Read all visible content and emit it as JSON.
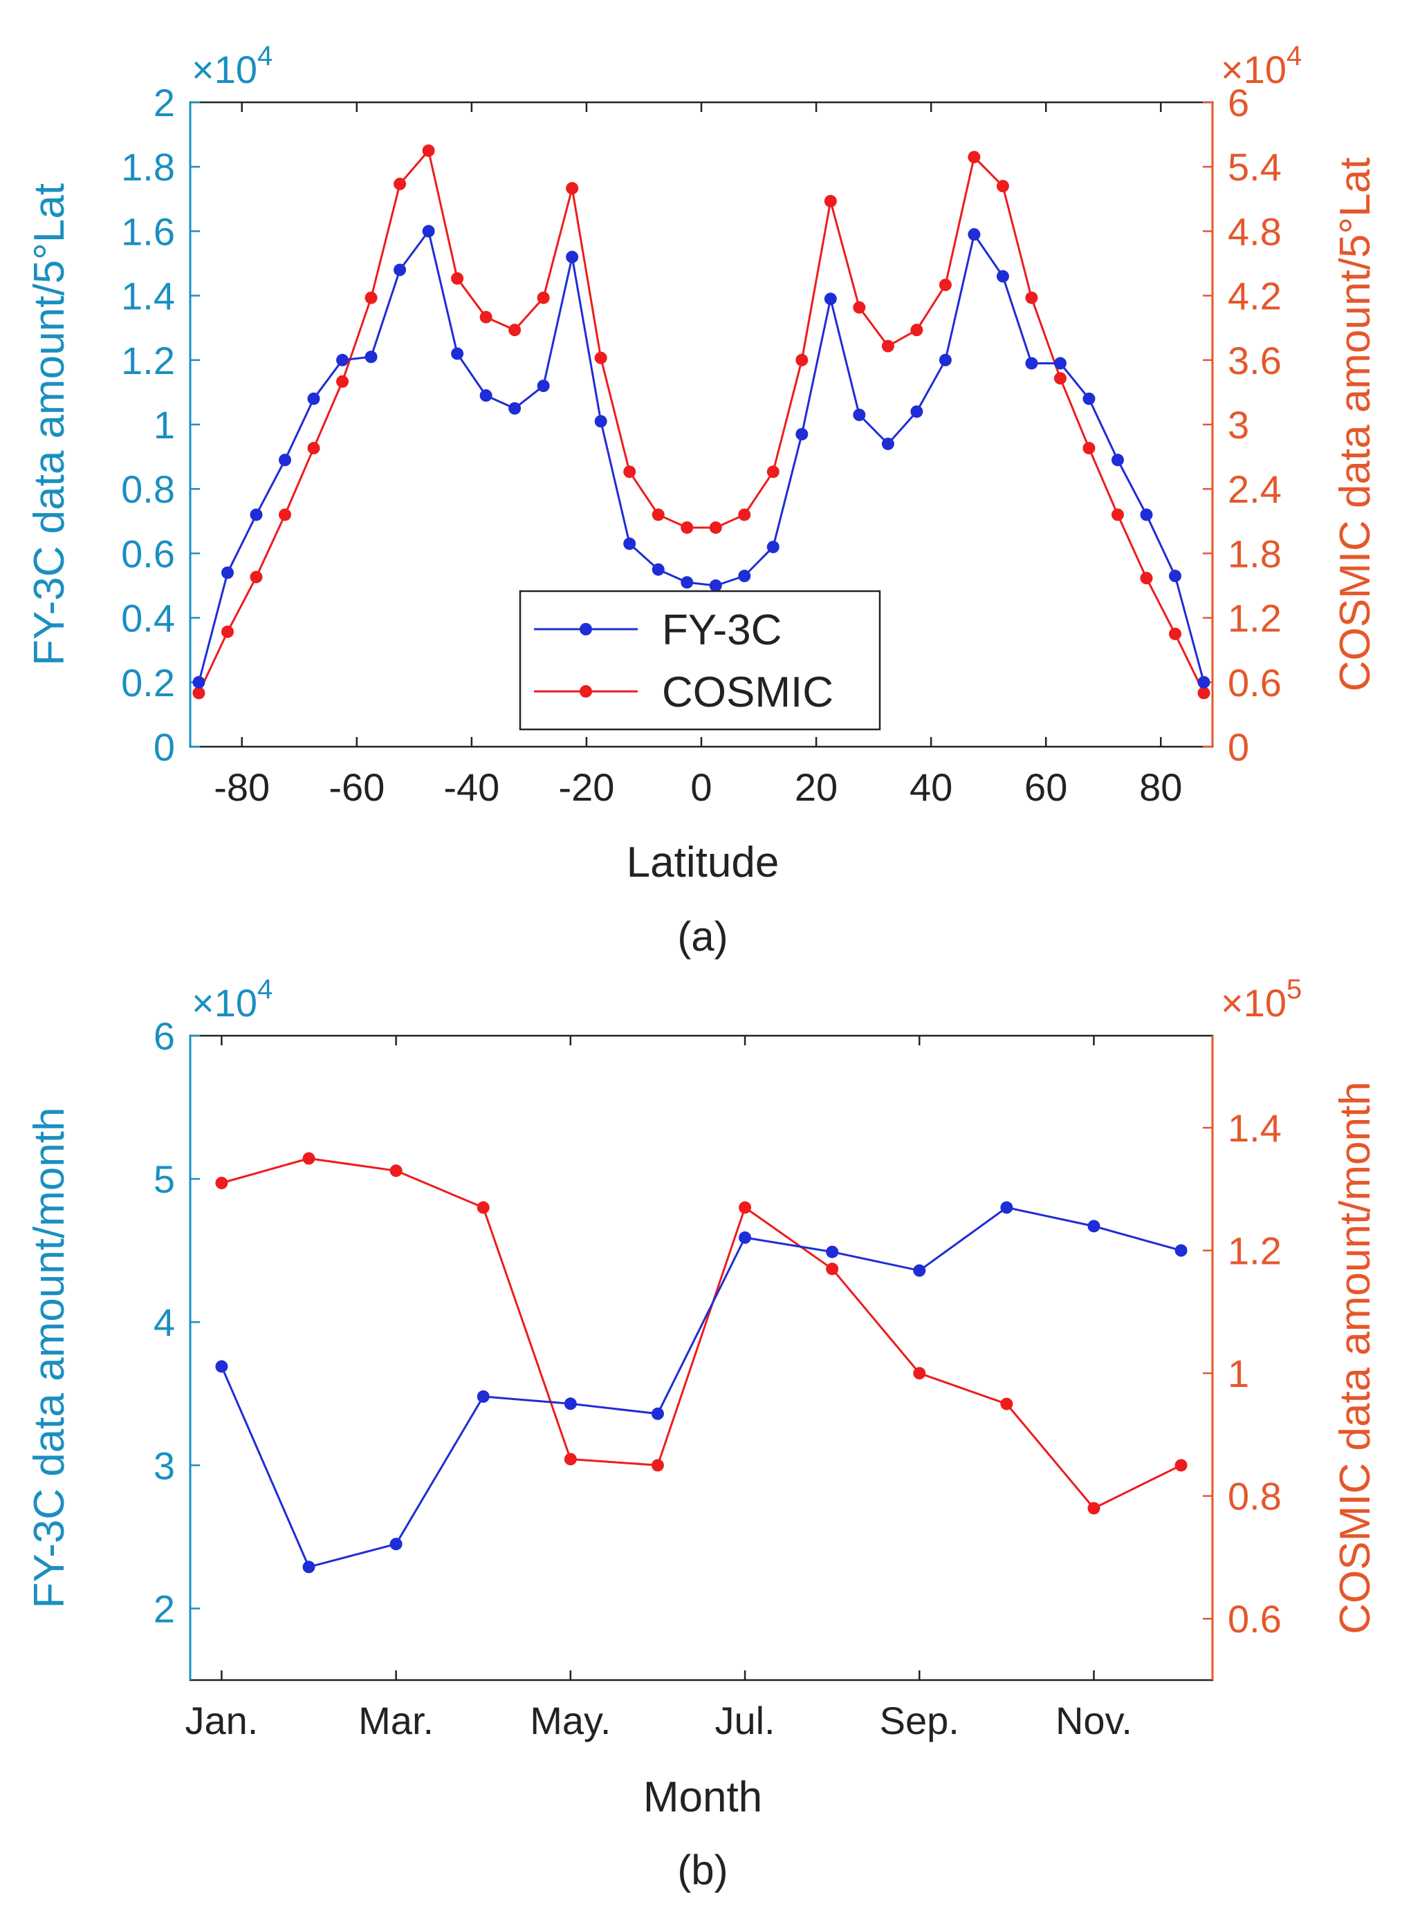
{
  "colors": {
    "left_axis": "#1a8fc0",
    "right_axis": "#e5572a",
    "fy3c": "#1f2dd6",
    "cosmic": "#ee1c1c",
    "frame": "#222222"
  },
  "legend": [
    "FY-3C",
    "COSMIC"
  ],
  "chart_data": [
    {
      "type": "line",
      "caption": "(a)",
      "xlabel": "Latitude",
      "ylabel_left": "FY-3C data amount/5°Lat",
      "ylabel_right": "COSMIC data amount/5°Lat",
      "left_multiplier": {
        "base": "×10",
        "exp": "4"
      },
      "right_multiplier": {
        "base": "×10",
        "exp": "4"
      },
      "xlim": [
        -89,
        89
      ],
      "ylim_left": [
        0,
        2
      ],
      "ylim_right": [
        0,
        6
      ],
      "x_ticks": [
        -80,
        -60,
        -40,
        -20,
        0,
        20,
        40,
        60,
        80
      ],
      "x_tick_labels": [
        "-80",
        "-60",
        "-40",
        "-20",
        "0",
        "20",
        "40",
        "60",
        "80"
      ],
      "y_left_ticks": [
        0,
        0.2,
        0.4,
        0.6,
        0.8,
        1,
        1.2,
        1.4,
        1.6,
        1.8,
        2
      ],
      "y_left_tick_labels": [
        "0",
        "0.2",
        "0.4",
        "0.6",
        "0.8",
        "1",
        "1.2",
        "1.4",
        "1.6",
        "1.8",
        "2"
      ],
      "y_right_ticks": [
        0,
        0.6,
        1.2,
        1.8,
        2.4,
        3,
        3.6,
        4.2,
        4.8,
        5.4,
        6
      ],
      "y_right_tick_labels": [
        "0",
        "0.6",
        "1.2",
        "1.8",
        "2.4",
        "3",
        "3.6",
        "4.2",
        "4.8",
        "5.4",
        "6"
      ],
      "x": [
        -87.5,
        -82.5,
        -77.5,
        -72.5,
        -67.5,
        -62.5,
        -57.5,
        -52.5,
        -47.5,
        -42.5,
        -37.5,
        -32.5,
        -27.5,
        -22.5,
        -17.5,
        -12.5,
        -7.5,
        -2.5,
        2.5,
        7.5,
        12.5,
        17.5,
        22.5,
        27.5,
        32.5,
        37.5,
        42.5,
        47.5,
        52.5,
        57.5,
        62.5,
        67.5,
        72.5,
        77.5,
        82.5,
        87.5
      ],
      "series": [
        {
          "name": "FY-3C",
          "axis": "left",
          "values": [
            0.2,
            0.54,
            0.72,
            0.89,
            1.08,
            1.2,
            1.21,
            1.48,
            1.6,
            1.22,
            1.09,
            1.05,
            1.12,
            1.52,
            1.01,
            0.63,
            0.55,
            0.51,
            0.5,
            0.53,
            0.62,
            0.97,
            1.39,
            1.03,
            0.94,
            1.04,
            1.2,
            1.59,
            1.46,
            1.19,
            1.19,
            1.08,
            0.89,
            0.72,
            0.53,
            0.2
          ]
        },
        {
          "name": "COSMIC",
          "axis": "right",
          "values": [
            0.5,
            1.07,
            1.58,
            2.16,
            2.78,
            3.4,
            4.18,
            5.24,
            5.55,
            4.36,
            4.0,
            3.88,
            4.18,
            5.2,
            3.62,
            2.56,
            2.16,
            2.04,
            2.04,
            2.16,
            2.56,
            3.6,
            5.08,
            4.09,
            3.73,
            3.88,
            4.3,
            5.49,
            5.22,
            4.18,
            3.43,
            2.78,
            2.16,
            1.57,
            1.05,
            0.5
          ]
        }
      ]
    },
    {
      "type": "line",
      "caption": "(b)",
      "xlabel": "Month",
      "ylabel_left": "FY-3C data amount/month",
      "ylabel_right": "COSMIC data amount/month",
      "left_multiplier": {
        "base": "×10",
        "exp": "4"
      },
      "right_multiplier": {
        "base": "×10",
        "exp": "5"
      },
      "xlim": [
        0.64,
        12.36
      ],
      "ylim_left": [
        1.5,
        6
      ],
      "ylim_right": [
        0.5,
        1.55
      ],
      "x_ticks": [
        1,
        3,
        5,
        7,
        9,
        11
      ],
      "x_tick_labels": [
        "Jan.",
        "Mar.",
        "May.",
        "Jul.",
        "Sep.",
        "Nov."
      ],
      "y_left_ticks": [
        2,
        3,
        4,
        5,
        6
      ],
      "y_left_tick_labels": [
        "2",
        "3",
        "4",
        "5",
        "6"
      ],
      "y_right_ticks": [
        0.6,
        0.8,
        1,
        1.2,
        1.4
      ],
      "y_right_tick_labels": [
        "0.6",
        "0.8",
        "1",
        "1.2",
        "1.4"
      ],
      "x": [
        1,
        2,
        3,
        4,
        5,
        6,
        7,
        8,
        9,
        10,
        11,
        12
      ],
      "series": [
        {
          "name": "FY-3C",
          "axis": "left",
          "values": [
            3.69,
            2.29,
            2.45,
            3.48,
            3.43,
            3.36,
            4.59,
            4.49,
            4.36,
            4.8,
            4.67,
            4.5
          ]
        },
        {
          "name": "COSMIC",
          "axis": "right",
          "values": [
            1.31,
            1.35,
            1.33,
            1.27,
            0.86,
            0.85,
            1.27,
            1.17,
            1.0,
            0.95,
            0.78,
            0.85
          ]
        }
      ]
    }
  ]
}
